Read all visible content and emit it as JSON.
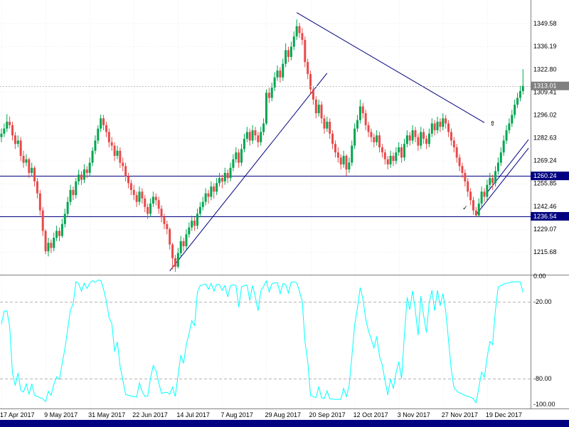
{
  "window": {
    "background": "#FFFFFF",
    "bottom_bar_color": "#000080",
    "axis_text_color": "#000000"
  },
  "chart_data": [
    {
      "type": "candlestick",
      "up_color": "#00A650",
      "down_color": "#E84A4A",
      "wick_same_as_body": true,
      "ylim": [
        1202.3,
        1363.4
      ],
      "y_ticks": [
        "1349.58",
        "1336.19",
        "1322.80",
        "1309.41",
        "1296.02",
        "1282.63",
        "1269.24",
        "1255.85",
        "1242.46",
        "1229.07",
        "1215.68"
      ],
      "x_labels": [
        {
          "text": "17 Apr 2017",
          "bar": 0
        },
        {
          "text": "9 May 2017",
          "bar": 16
        },
        {
          "text": "31 May 2017",
          "bar": 32
        },
        {
          "text": "22 Jun 2017",
          "bar": 48
        },
        {
          "text": "14 Jul 2017",
          "bar": 64
        },
        {
          "text": "7 Aug 2017",
          "bar": 80
        },
        {
          "text": "29 Aug 2017",
          "bar": 96
        },
        {
          "text": "20 Sep 2017",
          "bar": 112
        },
        {
          "text": "12 Oct 2017",
          "bar": 128
        },
        {
          "text": "3 Nov 2017",
          "bar": 144
        },
        {
          "text": "27 Nov 2017",
          "bar": 160
        },
        {
          "text": "19 Dec 2017",
          "bar": 176
        }
      ],
      "candles": [
        [
          1283,
          1288,
          1280,
          1285
        ],
        [
          1285,
          1291,
          1283,
          1288
        ],
        [
          1288,
          1296.5,
          1286,
          1292
        ],
        [
          1292,
          1295,
          1288,
          1290
        ],
        [
          1290,
          1292,
          1281,
          1284
        ],
        [
          1284,
          1286,
          1276,
          1279
        ],
        [
          1279,
          1284,
          1277,
          1281
        ],
        [
          1281,
          1283,
          1269,
          1272
        ],
        [
          1272,
          1275,
          1265,
          1268
        ],
        [
          1268,
          1273,
          1266,
          1270
        ],
        [
          1270,
          1271,
          1259,
          1262
        ],
        [
          1262,
          1268,
          1260,
          1265
        ],
        [
          1265,
          1266,
          1254,
          1257
        ],
        [
          1257,
          1259,
          1247,
          1250
        ],
        [
          1250,
          1252,
          1237,
          1240
        ],
        [
          1240,
          1242,
          1225,
          1228
        ],
        [
          1228,
          1229,
          1214.3,
          1216
        ],
        [
          1216,
          1224,
          1213,
          1221
        ],
        [
          1221,
          1223,
          1215,
          1218
        ],
        [
          1218,
          1227,
          1216,
          1224
        ],
        [
          1224,
          1231,
          1222,
          1228
        ],
        [
          1228,
          1230,
          1222,
          1225
        ],
        [
          1225,
          1235,
          1224,
          1232
        ],
        [
          1232,
          1241,
          1230,
          1238
        ],
        [
          1238,
          1248,
          1236,
          1245
        ],
        [
          1245,
          1255,
          1243,
          1252
        ],
        [
          1252,
          1254,
          1246,
          1249
        ],
        [
          1249,
          1259,
          1247,
          1257
        ],
        [
          1257,
          1264,
          1255,
          1261
        ],
        [
          1261,
          1263,
          1255,
          1258
        ],
        [
          1258,
          1267,
          1256,
          1264
        ],
        [
          1264,
          1266,
          1259,
          1262
        ],
        [
          1262,
          1271,
          1260,
          1268
        ],
        [
          1268,
          1277,
          1266,
          1275
        ],
        [
          1275,
          1284,
          1273,
          1281
        ],
        [
          1281,
          1290,
          1279,
          1288
        ],
        [
          1288,
          1296.2,
          1286,
          1294
        ],
        [
          1294,
          1296,
          1287,
          1290
        ],
        [
          1290,
          1292,
          1283,
          1286
        ],
        [
          1286,
          1288,
          1277,
          1280
        ],
        [
          1280,
          1283,
          1275,
          1278
        ],
        [
          1278,
          1280,
          1269,
          1272
        ],
        [
          1272,
          1278,
          1270,
          1275
        ],
        [
          1275,
          1277,
          1265,
          1268
        ],
        [
          1268,
          1271,
          1263,
          1266
        ],
        [
          1266,
          1268,
          1257,
          1260
        ],
        [
          1260,
          1262,
          1253,
          1256
        ],
        [
          1256,
          1258,
          1249,
          1252
        ],
        [
          1252,
          1255,
          1246,
          1249
        ],
        [
          1249,
          1251,
          1242,
          1245
        ],
        [
          1245,
          1254,
          1243,
          1251
        ],
        [
          1251,
          1253,
          1244,
          1247
        ],
        [
          1247,
          1249,
          1239,
          1242
        ],
        [
          1242,
          1244,
          1235,
          1238
        ],
        [
          1238,
          1247,
          1236,
          1244
        ],
        [
          1244,
          1251,
          1242,
          1248
        ],
        [
          1248,
          1250,
          1243,
          1246
        ],
        [
          1246,
          1248,
          1238,
          1241
        ],
        [
          1241,
          1243,
          1233,
          1236
        ],
        [
          1236,
          1238,
          1229,
          1232
        ],
        [
          1232,
          1234,
          1226,
          1229
        ],
        [
          1229,
          1230,
          1217,
          1220
        ],
        [
          1220,
          1221,
          1205.5,
          1212
        ],
        [
          1212,
          1214,
          1204,
          1207
        ],
        [
          1207,
          1218,
          1206,
          1215
        ],
        [
          1215,
          1225,
          1213,
          1222
        ],
        [
          1222,
          1224,
          1216,
          1219
        ],
        [
          1219,
          1229,
          1217,
          1226
        ],
        [
          1226,
          1233,
          1224,
          1230
        ],
        [
          1230,
          1237,
          1228,
          1234
        ],
        [
          1234,
          1236,
          1228,
          1231
        ],
        [
          1231,
          1241,
          1229,
          1238
        ],
        [
          1238,
          1245,
          1236,
          1242
        ],
        [
          1242,
          1248,
          1240,
          1245
        ],
        [
          1245,
          1253,
          1243,
          1250
        ],
        [
          1250,
          1252,
          1244,
          1248
        ],
        [
          1248,
          1257,
          1246,
          1254
        ],
        [
          1254,
          1256,
          1247,
          1251
        ],
        [
          1251,
          1259,
          1249,
          1256
        ],
        [
          1256,
          1262,
          1254,
          1259
        ],
        [
          1259,
          1261,
          1253,
          1257
        ],
        [
          1257,
          1265,
          1255,
          1262
        ],
        [
          1262,
          1264,
          1256,
          1259
        ],
        [
          1259,
          1268,
          1257,
          1265
        ],
        [
          1265,
          1273,
          1263,
          1270
        ],
        [
          1270,
          1277,
          1268,
          1274
        ],
        [
          1274,
          1276,
          1265,
          1268
        ],
        [
          1268,
          1279,
          1266,
          1276
        ],
        [
          1276,
          1285,
          1274,
          1282
        ],
        [
          1282,
          1289,
          1280,
          1286
        ],
        [
          1286,
          1288,
          1278,
          1281
        ],
        [
          1281,
          1290,
          1279,
          1287
        ],
        [
          1287,
          1289,
          1281,
          1284
        ],
        [
          1284,
          1286,
          1277,
          1280
        ],
        [
          1280,
          1289,
          1278,
          1286
        ],
        [
          1286,
          1294,
          1284,
          1291
        ],
        [
          1291,
          1311,
          1290,
          1309
        ],
        [
          1309,
          1312,
          1303,
          1306
        ],
        [
          1306,
          1315,
          1304,
          1312
        ],
        [
          1312,
          1321,
          1310,
          1318
        ],
        [
          1318,
          1325,
          1316,
          1322
        ],
        [
          1322,
          1324,
          1315,
          1318
        ],
        [
          1318,
          1329,
          1316,
          1326
        ],
        [
          1326,
          1338,
          1324,
          1334
        ],
        [
          1334,
          1336,
          1327,
          1330
        ],
        [
          1330,
          1339,
          1328,
          1336
        ],
        [
          1336,
          1345,
          1334,
          1342
        ],
        [
          1342,
          1352,
          1340,
          1348
        ],
        [
          1348,
          1350,
          1341,
          1344
        ],
        [
          1344,
          1347,
          1337,
          1340
        ],
        [
          1340,
          1342,
          1324,
          1327
        ],
        [
          1327,
          1329,
          1317,
          1320
        ],
        [
          1320,
          1322,
          1308,
          1311
        ],
        [
          1311,
          1313,
          1302,
          1305
        ],
        [
          1305,
          1307,
          1294,
          1297
        ],
        [
          1297,
          1305,
          1295,
          1302
        ],
        [
          1302,
          1304,
          1291,
          1294
        ],
        [
          1294,
          1296,
          1285,
          1288
        ],
        [
          1288,
          1295,
          1286,
          1292
        ],
        [
          1292,
          1294,
          1282,
          1285
        ],
        [
          1285,
          1287,
          1276,
          1279
        ],
        [
          1279,
          1281,
          1271,
          1274
        ],
        [
          1274,
          1277,
          1268,
          1271
        ],
        [
          1271,
          1273,
          1264,
          1267
        ],
        [
          1267,
          1275,
          1265,
          1272
        ],
        [
          1272,
          1273,
          1260.3,
          1264
        ],
        [
          1264,
          1271,
          1262,
          1268
        ],
        [
          1268,
          1281,
          1266,
          1278
        ],
        [
          1278,
          1291,
          1276,
          1288
        ],
        [
          1288,
          1296,
          1286,
          1293
        ],
        [
          1293,
          1305,
          1291,
          1301
        ],
        [
          1301,
          1303,
          1294,
          1297
        ],
        [
          1297,
          1299,
          1287,
          1290
        ],
        [
          1290,
          1292,
          1283,
          1286
        ],
        [
          1286,
          1288,
          1280,
          1283
        ],
        [
          1283,
          1285,
          1277,
          1280
        ],
        [
          1280,
          1287,
          1278,
          1284
        ],
        [
          1284,
          1286,
          1274,
          1277
        ],
        [
          1277,
          1279,
          1271,
          1274
        ],
        [
          1274,
          1276,
          1267,
          1270
        ],
        [
          1270,
          1272,
          1264,
          1267
        ],
        [
          1267,
          1275,
          1265,
          1272
        ],
        [
          1272,
          1274,
          1266,
          1269
        ],
        [
          1269,
          1277,
          1267,
          1274
        ],
        [
          1274,
          1280,
          1272,
          1277
        ],
        [
          1277,
          1279,
          1268,
          1271
        ],
        [
          1271,
          1282,
          1269,
          1279
        ],
        [
          1279,
          1287,
          1277,
          1284
        ],
        [
          1284,
          1286,
          1278,
          1281
        ],
        [
          1281,
          1290,
          1279,
          1287
        ],
        [
          1287,
          1289,
          1280,
          1283
        ],
        [
          1283,
          1285,
          1275,
          1278
        ],
        [
          1278,
          1289,
          1276,
          1286
        ],
        [
          1286,
          1288,
          1279,
          1282
        ],
        [
          1282,
          1284,
          1276,
          1279
        ],
        [
          1279,
          1288,
          1277,
          1285
        ],
        [
          1285,
          1294,
          1283,
          1291
        ],
        [
          1291,
          1293,
          1284,
          1287
        ],
        [
          1287,
          1295,
          1285,
          1292
        ],
        [
          1292,
          1294,
          1286,
          1289
        ],
        [
          1289,
          1297,
          1287,
          1294
        ],
        [
          1294,
          1296,
          1288,
          1291
        ],
        [
          1291,
          1293,
          1283,
          1286
        ],
        [
          1286,
          1288,
          1278,
          1281
        ],
        [
          1281,
          1283,
          1274,
          1277
        ],
        [
          1277,
          1279,
          1268,
          1271
        ],
        [
          1271,
          1273,
          1263,
          1266
        ],
        [
          1266,
          1268,
          1259,
          1262
        ],
        [
          1262,
          1264,
          1254,
          1257
        ],
        [
          1257,
          1259,
          1248,
          1251
        ],
        [
          1251,
          1253,
          1243,
          1246
        ],
        [
          1246,
          1248,
          1237.5,
          1240
        ],
        [
          1240,
          1242,
          1236.3,
          1237
        ],
        [
          1237,
          1247,
          1236,
          1244
        ],
        [
          1244,
          1254,
          1242,
          1251
        ],
        [
          1251,
          1253,
          1245,
          1248
        ],
        [
          1248,
          1258,
          1246,
          1255
        ],
        [
          1255,
          1262,
          1253,
          1259
        ],
        [
          1259,
          1261,
          1252,
          1256
        ],
        [
          1256,
          1266,
          1254,
          1263
        ],
        [
          1263,
          1271,
          1261,
          1268
        ],
        [
          1268,
          1277,
          1266,
          1274
        ],
        [
          1274,
          1284,
          1272,
          1281
        ],
        [
          1281,
          1290,
          1279,
          1287
        ],
        [
          1287,
          1294,
          1285,
          1291
        ],
        [
          1291,
          1299,
          1289,
          1296
        ],
        [
          1296,
          1305,
          1294,
          1302
        ],
        [
          1302,
          1309,
          1300,
          1306
        ],
        [
          1306,
          1313,
          1304,
          1310
        ],
        [
          1310,
          1322.8,
          1308,
          1313.01
        ]
      ],
      "current_price": {
        "value": 1313.01,
        "label": "1313.01",
        "badge_color": "#808080"
      },
      "level_lines": [
        {
          "price": 1260.24,
          "label": "1260.24",
          "color": "#000080"
        },
        {
          "price": 1236.54,
          "label": "1236.54",
          "color": "#000080"
        }
      ],
      "trendlines": [
        {
          "b1": 61,
          "p1": 1204.5,
          "b2": 118,
          "p2": 1320.5,
          "color": "#000080"
        },
        {
          "b1": 107,
          "p1": 1356.0,
          "b2": 175,
          "p2": 1291.5,
          "color": "#000080"
        },
        {
          "b1": 172,
          "p1": 1237.5,
          "b2": 191,
          "p2": 1276.5,
          "color": "#000080"
        },
        {
          "b1": 176,
          "p1": 1250.5,
          "b2": 191,
          "p2": 1281.5,
          "color": "#000080"
        }
      ],
      "markers": [
        {
          "bar": 178,
          "price": 1292.5,
          "glyph": "⇧",
          "color": "#32CD32",
          "size": 20,
          "name": "up-arrow-icon"
        },
        {
          "bar": 168,
          "price": 1242.0,
          "glyph": "✓",
          "color": "#CC3333",
          "size": 12,
          "name": "check-mark-icon"
        }
      ]
    },
    {
      "type": "line",
      "color": "#00FFFF",
      "period": 14,
      "ylim": [
        -100,
        0
      ],
      "y_ticks": [
        "0.00",
        "-20.00",
        "-80.00",
        "-100.00"
      ],
      "level_lines": [
        -20,
        -80
      ]
    }
  ]
}
